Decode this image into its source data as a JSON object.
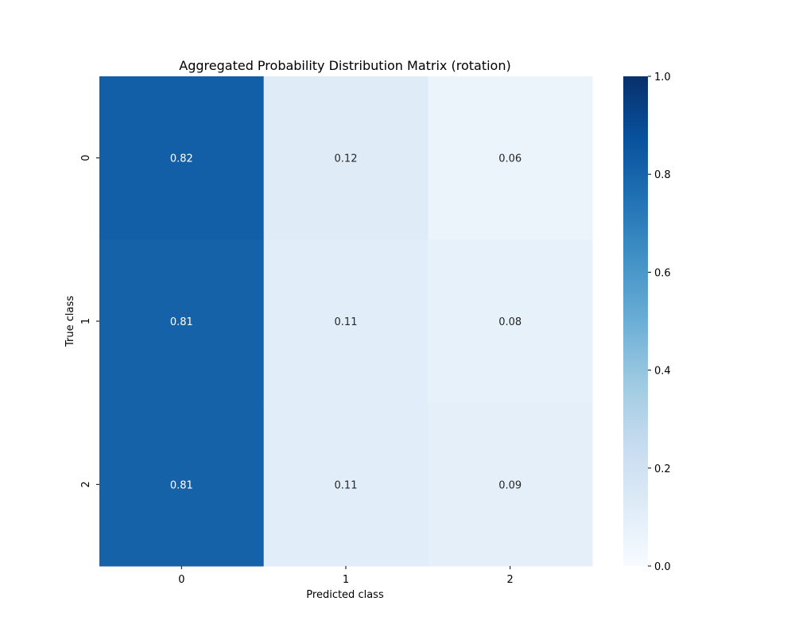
{
  "chart_data": {
    "type": "heatmap",
    "title": "Aggregated Probability Distribution Matrix (rotation)",
    "xlabel": "Predicted class",
    "ylabel": "True class",
    "x_categories": [
      "0",
      "1",
      "2"
    ],
    "y_categories": [
      "0",
      "1",
      "2"
    ],
    "values": [
      [
        0.82,
        0.12,
        0.06
      ],
      [
        0.81,
        0.11,
        0.08
      ],
      [
        0.81,
        0.11,
        0.09
      ]
    ],
    "value_labels": [
      [
        "0.82",
        "0.12",
        "0.06"
      ],
      [
        "0.81",
        "0.11",
        "0.08"
      ],
      [
        "0.81",
        "0.11",
        "0.09"
      ]
    ],
    "colormap": "Blues",
    "vmin": 0.0,
    "vmax": 1.0,
    "colorbar_ticks": [
      "0.0",
      "0.2",
      "0.4",
      "0.6",
      "0.8",
      "1.0"
    ],
    "colorbar_tick_values": [
      0.0,
      0.2,
      0.4,
      0.6,
      0.8,
      1.0
    ]
  }
}
